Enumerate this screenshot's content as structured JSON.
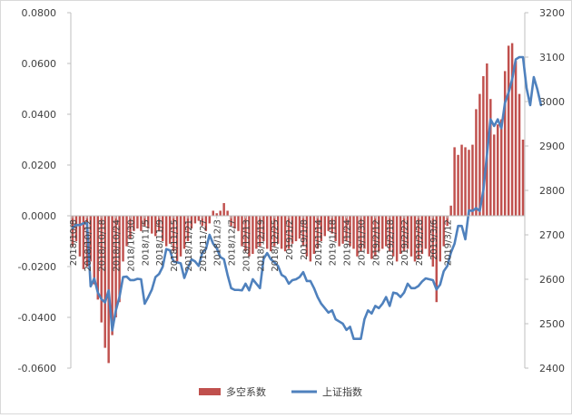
{
  "chart_data": {
    "type": "bar+line",
    "title": "",
    "xlabel": "",
    "x_tick_labels": [
      "2018/10/8",
      "2018/10/12",
      "2018/10/18",
      "2018/10/24",
      "2018/10/30",
      "2018/11/5",
      "2018/11/9",
      "2018/11/15",
      "2018/11/21",
      "2018/11/27",
      "2018/12/3",
      "2018/12/7",
      "2018/12/13",
      "2018/12/19",
      "2018/12/25",
      "2019/1/2",
      "2019/1/8",
      "2019/1/14",
      "2019/1/18",
      "2019/1/24",
      "2019/1/30",
      "2019/2/12",
      "2019/2/18",
      "2019/2/22",
      "2019/2/28",
      "2019/3/6",
      "2019/3/12"
    ],
    "tick_every": 4,
    "y_left": {
      "min": -0.06,
      "max": 0.08,
      "step": 0.02,
      "decimals": 4,
      "label": ""
    },
    "y_right": {
      "min": 2400,
      "max": 3200,
      "step": 100,
      "label": ""
    },
    "series": [
      {
        "name": "多空系数",
        "kind": "bar",
        "axis": "left",
        "color": "#c0504d",
        "values": [
          -0.012,
          -0.01,
          -0.016,
          -0.021,
          -0.02,
          -0.018,
          -0.027,
          -0.033,
          -0.042,
          -0.052,
          -0.058,
          -0.047,
          -0.04,
          -0.034,
          -0.018,
          -0.012,
          -0.009,
          -0.006,
          -0.005,
          -0.006,
          -0.004,
          -0.005,
          -0.007,
          -0.008,
          -0.006,
          -0.01,
          -0.012,
          -0.011,
          -0.014,
          -0.018,
          -0.016,
          -0.013,
          -0.01,
          -0.005,
          -0.003,
          -0.002,
          -0.004,
          -0.006,
          -0.003,
          0.002,
          0.001,
          0.002,
          0.005,
          0.002,
          -0.004,
          -0.005,
          -0.006,
          -0.012,
          -0.014,
          -0.016,
          -0.015,
          -0.013,
          -0.012,
          -0.01,
          -0.013,
          -0.014,
          -0.012,
          -0.011,
          -0.013,
          -0.014,
          -0.013,
          -0.011,
          -0.01,
          -0.009,
          -0.012,
          -0.016,
          -0.018,
          -0.015,
          -0.013,
          -0.01,
          -0.008,
          -0.006,
          -0.007,
          -0.01,
          -0.012,
          -0.011,
          -0.01,
          -0.012,
          -0.013,
          -0.016,
          -0.014,
          -0.013,
          -0.015,
          -0.017,
          -0.016,
          -0.014,
          -0.013,
          -0.012,
          -0.014,
          -0.016,
          -0.018,
          -0.015,
          -0.014,
          -0.013,
          -0.016,
          -0.018,
          -0.017,
          -0.015,
          -0.013,
          -0.016,
          -0.02,
          -0.034,
          -0.018,
          -0.012,
          -0.004,
          0.004,
          0.027,
          0.024,
          0.028,
          0.027,
          0.026,
          0.028,
          0.042,
          0.048,
          0.055,
          0.06,
          0.046,
          0.032,
          0.036,
          0.038,
          0.057,
          0.067,
          0.068,
          0.061,
          0.048,
          0.03
        ]
      },
      {
        "name": "上证指数",
        "kind": "line",
        "axis": "right",
        "color": "#4f81bd",
        "values": [
          2716,
          2722,
          2722,
          2726,
          2726,
          2584,
          2602,
          2570,
          2555,
          2548,
          2575,
          2485,
          2530,
          2560,
          2605,
          2606,
          2598,
          2598,
          2601,
          2600,
          2545,
          2560,
          2577,
          2605,
          2612,
          2628,
          2668,
          2665,
          2640,
          2638,
          2636,
          2603,
          2625,
          2645,
          2640,
          2630,
          2660,
          2668,
          2700,
          2680,
          2670,
          2650,
          2645,
          2610,
          2580,
          2576,
          2576,
          2575,
          2590,
          2575,
          2600,
          2590,
          2580,
          2646,
          2659,
          2645,
          2638,
          2630,
          2610,
          2605,
          2590,
          2598,
          2600,
          2605,
          2616,
          2596,
          2596,
          2580,
          2560,
          2545,
          2535,
          2525,
          2530,
          2510,
          2505,
          2500,
          2486,
          2493,
          2466,
          2466,
          2466,
          2510,
          2530,
          2523,
          2540,
          2535,
          2545,
          2560,
          2540,
          2570,
          2568,
          2560,
          2570,
          2590,
          2580,
          2580,
          2585,
          2595,
          2602,
          2600,
          2598,
          2577,
          2588,
          2618,
          2630,
          2660,
          2680,
          2720,
          2720,
          2690,
          2755,
          2754,
          2760,
          2754,
          2800,
          2880,
          2960,
          2945,
          2960,
          2940,
          2997,
          3020,
          3050,
          3095,
          3100,
          3100,
          3030,
          2992,
          3055,
          3027,
          2992
        ]
      }
    ],
    "legend_position": "bottom-center"
  }
}
